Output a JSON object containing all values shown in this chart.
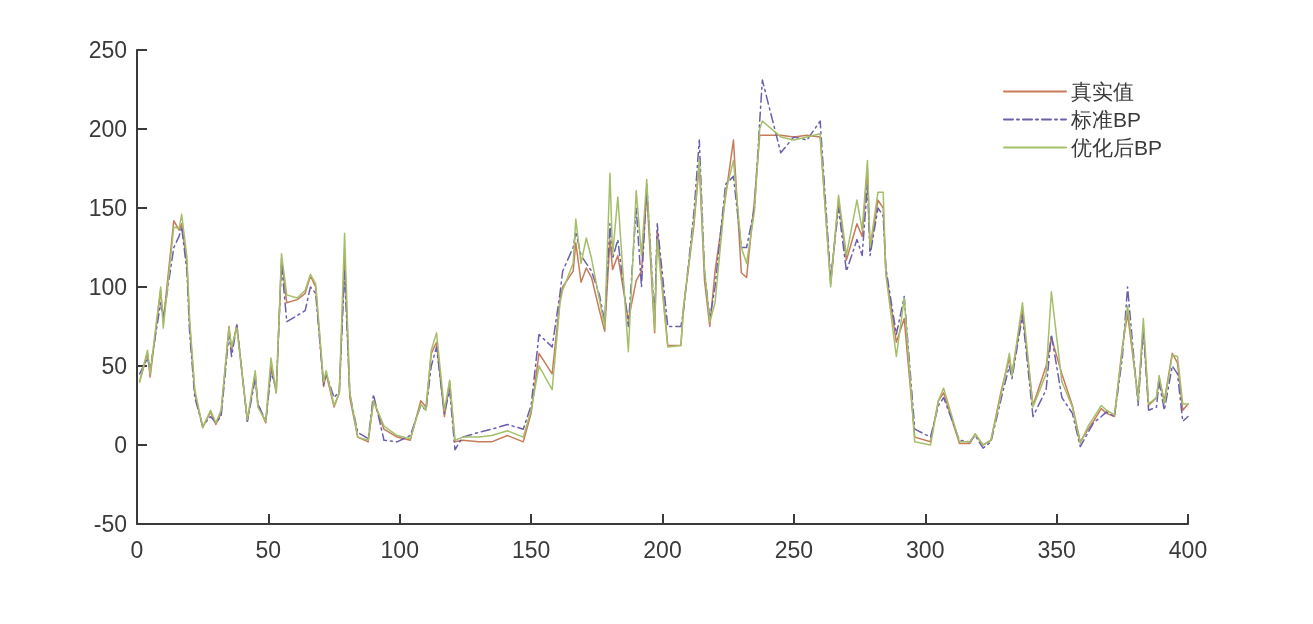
{
  "chart_data": {
    "type": "line",
    "x": [
      1,
      4,
      5,
      9,
      10,
      14,
      16,
      17,
      19,
      20,
      22,
      25,
      28,
      30,
      32,
      35,
      36,
      38,
      42,
      45,
      46,
      49,
      51,
      53,
      55,
      57,
      61,
      64,
      66,
      68,
      71,
      72,
      75,
      77,
      79,
      81,
      84,
      88,
      90,
      94,
      99,
      104,
      108,
      110,
      112,
      114,
      117,
      119,
      121,
      124,
      130,
      135,
      141,
      147,
      150,
      153,
      158,
      161,
      162,
      166,
      167,
      169,
      171,
      173,
      176,
      178,
      180,
      181,
      183,
      187,
      190,
      192,
      194,
      197,
      198,
      202,
      207,
      208,
      212,
      214,
      216,
      218,
      220,
      224,
      227,
      230,
      232,
      235,
      237,
      238,
      245,
      250,
      255,
      260,
      264,
      267,
      270,
      274,
      276,
      278,
      279,
      282,
      284,
      285,
      289,
      292,
      296,
      302,
      305,
      307,
      313,
      317,
      319,
      322,
      325,
      329,
      332,
      333,
      337,
      341,
      346,
      348,
      352,
      356,
      359,
      362,
      364,
      367,
      369,
      372,
      375,
      377,
      381,
      383,
      385,
      388,
      389,
      391,
      394,
      396,
      398,
      400
    ],
    "series": [
      {
        "name": "真实值",
        "color": "#c77b5a",
        "line_style": "solid",
        "values": [
          40,
          58,
          43,
          98,
          78,
          142,
          136,
          140,
          115,
          77,
          33,
          11,
          21,
          13,
          20,
          75,
          60,
          76,
          15,
          45,
          26,
          14,
          50,
          33,
          118,
          90,
          92,
          96,
          107,
          100,
          37,
          45,
          24,
          33,
          120,
          30,
          5,
          2,
          28,
          10,
          5,
          3,
          28,
          24,
          58,
          65,
          18,
          40,
          2,
          3,
          2,
          2,
          6,
          2,
          20,
          58,
          45,
          92,
          100,
          110,
          128,
          103,
          112,
          106,
          85,
          72,
          130,
          111,
          120,
          79,
          104,
          110,
          160,
          71,
          136,
          63,
          63,
          87,
          140,
          178,
          104,
          75,
          110,
          157,
          193,
          109,
          106,
          155,
          196,
          196,
          196,
          195,
          196,
          195,
          102,
          155,
          117,
          140,
          132,
          175,
          123,
          155,
          150,
          110,
          65,
          80,
          5,
          2,
          28,
          33,
          1,
          1,
          7,
          0,
          3,
          35,
          55,
          45,
          85,
          25,
          50,
          68,
          45,
          25,
          2,
          10,
          15,
          23,
          20,
          18,
          62,
          83,
          30,
          75,
          25,
          30,
          42,
          28,
          58,
          52,
          22,
          26
        ]
      },
      {
        "name": "标准BP",
        "color": "#6b5fae",
        "line_style": "dashdot",
        "values": [
          45,
          55,
          48,
          90,
          80,
          125,
          132,
          138,
          110,
          72,
          30,
          12,
          18,
          14,
          18,
          70,
          56,
          76,
          15,
          42,
          26,
          15,
          46,
          36,
          115,
          78,
          82,
          85,
          100,
          96,
          38,
          45,
          30,
          34,
          110,
          32,
          8,
          4,
          32,
          3,
          2,
          6,
          25,
          22,
          50,
          62,
          20,
          35,
          -3,
          5,
          8,
          10,
          13,
          10,
          25,
          70,
          62,
          96,
          110,
          125,
          135,
          120,
          115,
          110,
          95,
          78,
          140,
          118,
          130,
          75,
          150,
          100,
          165,
          80,
          140,
          75,
          75,
          85,
          148,
          193,
          110,
          80,
          100,
          165,
          170,
          125,
          125,
          150,
          205,
          231,
          185,
          195,
          193,
          205,
          105,
          150,
          110,
          130,
          120,
          165,
          120,
          150,
          145,
          112,
          70,
          94,
          10,
          5,
          25,
          30,
          3,
          2,
          6,
          -2,
          2,
          30,
          50,
          42,
          82,
          18,
          35,
          70,
          30,
          20,
          -1,
          8,
          14,
          18,
          21,
          18,
          55,
          100,
          25,
          73,
          22,
          24,
          40,
          22,
          50,
          45,
          15,
          18
        ]
      },
      {
        "name": "优化后BP",
        "color": "#a4bf6a",
        "line_style": "solid",
        "values": [
          40,
          60,
          45,
          100,
          74,
          138,
          137,
          146,
          119,
          80,
          35,
          11,
          22,
          14,
          22,
          74,
          62,
          74,
          16,
          47,
          24,
          15,
          55,
          33,
          121,
          95,
          93,
          98,
          108,
          102,
          40,
          47,
          25,
          33,
          134,
          33,
          5,
          3,
          28,
          12,
          6,
          4,
          26,
          22,
          60,
          71,
          22,
          41,
          3,
          5,
          5,
          6,
          9,
          5,
          22,
          50,
          35,
          90,
          98,
          115,
          143,
          115,
          131,
          118,
          92,
          75,
          172,
          120,
          157,
          59,
          161,
          120,
          168,
          73,
          130,
          62,
          63,
          87,
          142,
          180,
          110,
          78,
          90,
          160,
          180,
          125,
          115,
          148,
          200,
          205,
          195,
          193,
          195,
          197,
          100,
          158,
          120,
          155,
          136,
          180,
          125,
          160,
          160,
          108,
          56,
          93,
          2,
          0,
          28,
          36,
          2,
          2,
          7,
          0,
          3,
          33,
          58,
          44,
          90,
          24,
          45,
          97,
          40,
          24,
          1,
          12,
          17,
          25,
          22,
          19,
          60,
          88,
          28,
          80,
          26,
          30,
          44,
          26,
          57,
          56,
          26,
          26
        ]
      }
    ],
    "xlim": [
      0,
      400
    ],
    "xticks": [
      0,
      50,
      100,
      150,
      200,
      250,
      300,
      350,
      400
    ],
    "ylim": [
      -50,
      250
    ],
    "yticks": [
      -50,
      0,
      50,
      100,
      150,
      200,
      250
    ],
    "grid": false,
    "legend": "top right",
    "marker": "none"
  }
}
